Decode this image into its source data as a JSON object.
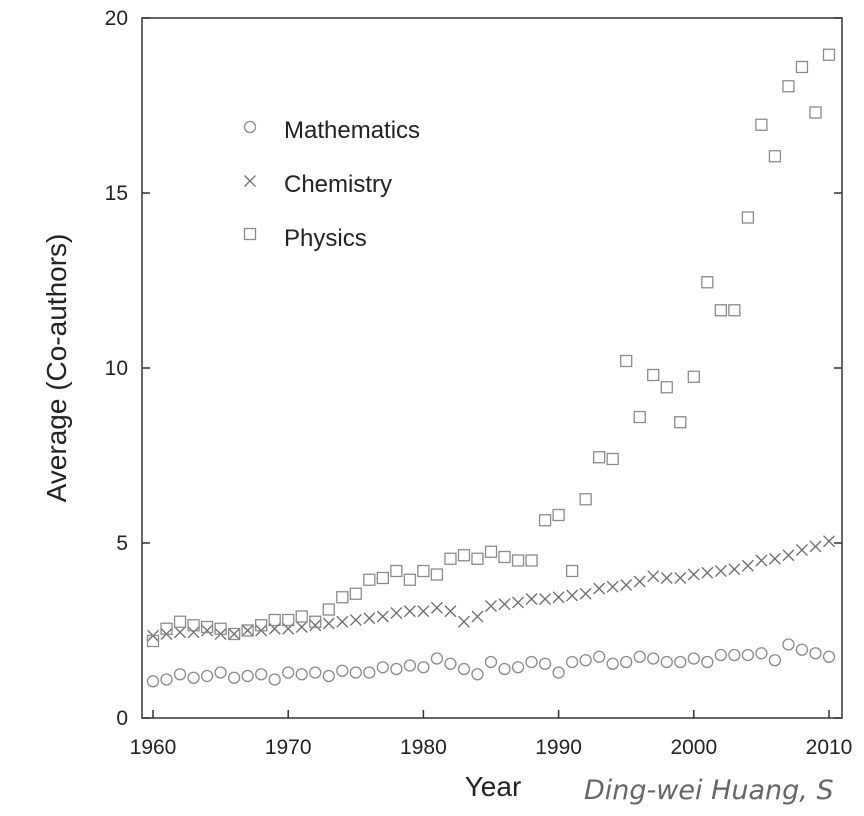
{
  "chart_data": {
    "type": "scatter",
    "xlabel": "Year",
    "ylabel": "Average (Co-authors)",
    "xlim": [
      1960,
      2010
    ],
    "ylim": [
      0,
      20
    ],
    "xticks": [
      "1960",
      "1970",
      "1980",
      "1990",
      "2000",
      "2010"
    ],
    "yticks": [
      "0",
      "5",
      "10",
      "15",
      "20"
    ],
    "legend_position": "top-left",
    "grid": false,
    "credit": "Ding-wei Huang, S",
    "series": [
      {
        "name": "Mathematics",
        "marker": "circle",
        "x": [
          1960,
          1961,
          1962,
          1963,
          1964,
          1965,
          1966,
          1967,
          1968,
          1969,
          1970,
          1971,
          1972,
          1973,
          1974,
          1975,
          1976,
          1977,
          1978,
          1979,
          1980,
          1981,
          1982,
          1983,
          1984,
          1985,
          1986,
          1987,
          1988,
          1989,
          1990,
          1991,
          1992,
          1993,
          1994,
          1995,
          1996,
          1997,
          1998,
          1999,
          2000,
          2001,
          2002,
          2003,
          2004,
          2005,
          2006,
          2007,
          2008,
          2009,
          2010
        ],
        "y": [
          1.05,
          1.1,
          1.25,
          1.15,
          1.2,
          1.3,
          1.15,
          1.2,
          1.25,
          1.1,
          1.3,
          1.25,
          1.3,
          1.2,
          1.35,
          1.3,
          1.3,
          1.45,
          1.4,
          1.5,
          1.45,
          1.7,
          1.55,
          1.4,
          1.25,
          1.6,
          1.4,
          1.45,
          1.6,
          1.55,
          1.3,
          1.6,
          1.65,
          1.75,
          1.55,
          1.6,
          1.75,
          1.7,
          1.6,
          1.6,
          1.7,
          1.6,
          1.8,
          1.8,
          1.8,
          1.85,
          1.65,
          2.1,
          1.95,
          1.85,
          1.75
        ]
      },
      {
        "name": "Chemistry",
        "marker": "x",
        "x": [
          1960,
          1961,
          1962,
          1963,
          1964,
          1965,
          1966,
          1967,
          1968,
          1969,
          1970,
          1971,
          1972,
          1973,
          1974,
          1975,
          1976,
          1977,
          1978,
          1979,
          1980,
          1981,
          1982,
          1983,
          1984,
          1985,
          1986,
          1987,
          1988,
          1989,
          1990,
          1991,
          1992,
          1993,
          1994,
          1995,
          1996,
          1997,
          1998,
          1999,
          2000,
          2001,
          2002,
          2003,
          2004,
          2005,
          2006,
          2007,
          2008,
          2009,
          2010
        ],
        "y": [
          2.35,
          2.4,
          2.45,
          2.45,
          2.5,
          2.4,
          2.4,
          2.5,
          2.5,
          2.55,
          2.55,
          2.6,
          2.65,
          2.7,
          2.75,
          2.8,
          2.85,
          2.9,
          3.0,
          3.05,
          3.05,
          3.15,
          3.05,
          2.75,
          2.9,
          3.2,
          3.25,
          3.3,
          3.4,
          3.4,
          3.45,
          3.5,
          3.55,
          3.7,
          3.75,
          3.8,
          3.9,
          4.05,
          4.0,
          4.0,
          4.1,
          4.15,
          4.2,
          4.25,
          4.35,
          4.5,
          4.55,
          4.65,
          4.8,
          4.9,
          5.05
        ]
      },
      {
        "name": "Physics",
        "marker": "square",
        "x": [
          1960,
          1961,
          1962,
          1963,
          1964,
          1965,
          1966,
          1967,
          1968,
          1969,
          1970,
          1971,
          1972,
          1973,
          1974,
          1975,
          1976,
          1977,
          1978,
          1979,
          1980,
          1981,
          1982,
          1983,
          1984,
          1985,
          1986,
          1987,
          1988,
          1989,
          1990,
          1991,
          1992,
          1993,
          1994,
          1995,
          1996,
          1997,
          1998,
          1999,
          2000,
          2001,
          2002,
          2003,
          2004,
          2005,
          2006,
          2007,
          2008,
          2009,
          2010
        ],
        "y": [
          2.2,
          2.55,
          2.75,
          2.65,
          2.6,
          2.55,
          2.4,
          2.5,
          2.65,
          2.8,
          2.8,
          2.9,
          2.75,
          3.1,
          3.45,
          3.55,
          3.95,
          4.0,
          4.2,
          3.95,
          4.2,
          4.1,
          4.55,
          4.65,
          4.55,
          4.75,
          4.6,
          4.5,
          4.5,
          5.65,
          5.8,
          4.2,
          6.25,
          7.45,
          7.4,
          10.2,
          8.6,
          9.8,
          9.45,
          8.45,
          9.75,
          12.45,
          11.65,
          11.65,
          14.3,
          16.95,
          16.05,
          18.05,
          18.6,
          17.3,
          18.95
        ]
      }
    ]
  }
}
